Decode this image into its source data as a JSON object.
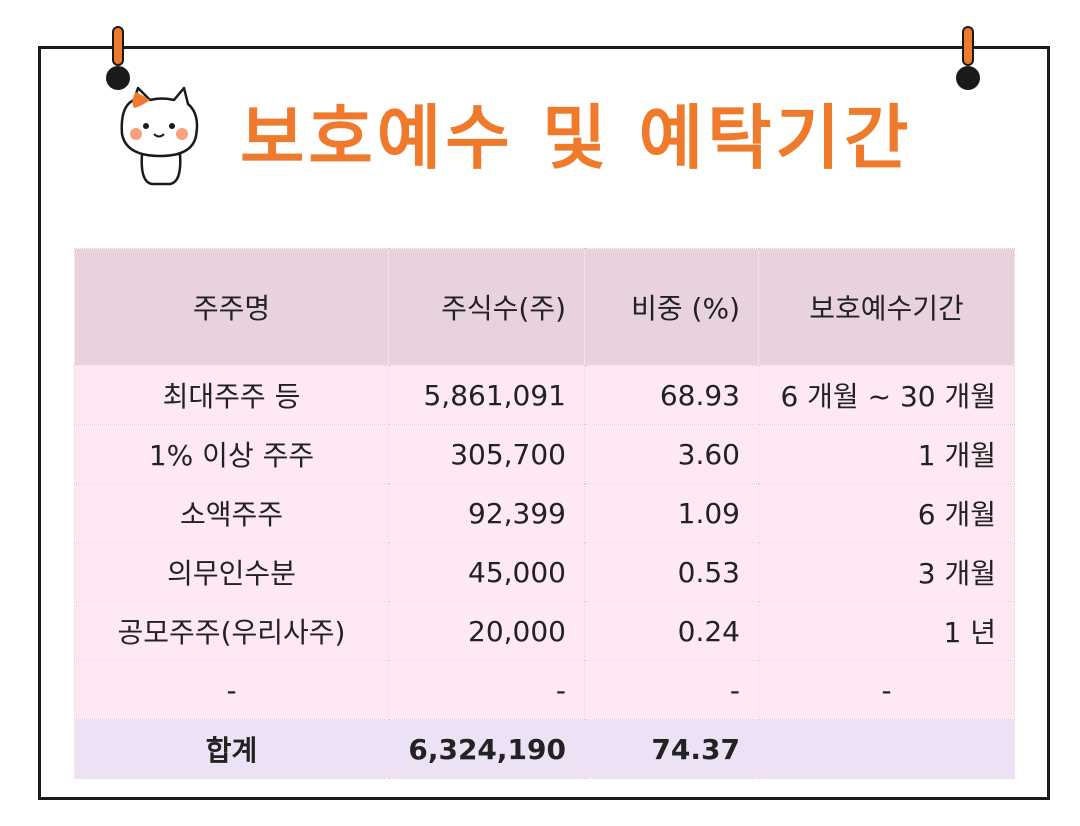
{
  "title": "보호예수 및 예탁기간",
  "colors": {
    "accent": "#ef7a2c",
    "header_bg": "#e8d2dd",
    "row_bg": "#fde8f3",
    "total_bg": "#ede1f5"
  },
  "icons": {
    "mascot": "cat-mascot-icon",
    "pins": "pushpin-icon"
  },
  "table": {
    "headers": [
      "주주명",
      "주식수(주)",
      "비중 (%)",
      "보호예수기간"
    ],
    "rows": [
      [
        "최대주주 등",
        "5,861,091",
        "68.93",
        "6 개월 ~ 30 개월"
      ],
      [
        "1% 이상 주주",
        "305,700",
        "3.60",
        "1 개월"
      ],
      [
        "소액주주",
        "92,399",
        "1.09",
        "6 개월"
      ],
      [
        "의무인수분",
        "45,000",
        "0.53",
        "3 개월"
      ],
      [
        "공모주주(우리사주)",
        "20,000",
        "0.24",
        "1 년"
      ],
      [
        "-",
        "-",
        "-",
        "-"
      ]
    ],
    "total": [
      "합계",
      "6,324,190",
      "74.37",
      ""
    ]
  }
}
